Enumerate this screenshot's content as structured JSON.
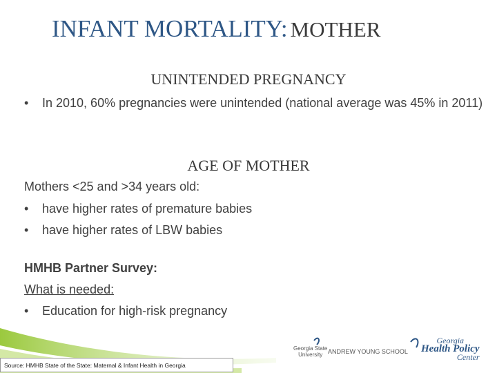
{
  "slide": {
    "title": {
      "main": "INFANT MORTALITY:",
      "sub": "MOTHER"
    },
    "sections": [
      {
        "heading": "UNINTENDED PREGNANCY",
        "bullets": [
          "In 2010, 60% pregnancies were unintended (national average was 45% in 2011)"
        ]
      },
      {
        "heading": "AGE OF MOTHER",
        "intro": "Mothers <25 and >34 years old:",
        "bullets": [
          "have higher rates of premature babies",
          "have higher rates of LBW babies"
        ]
      }
    ],
    "survey": {
      "title": "HMHB Partner Survey:",
      "subtitle": "What is needed:",
      "bullets": [
        "Education for high-risk pregnancy"
      ]
    },
    "footer": {
      "source": "Source: HMHB State of the State: Maternal & Infant Health in Georgia"
    },
    "logos": [
      {
        "line1": "Georgia State",
        "line2": "University"
      },
      {
        "line1": "ANDREW YOUNG SCHOOL"
      },
      {
        "line1": "Georgia",
        "line2": "Health Policy",
        "line3": "Center"
      }
    ]
  }
}
